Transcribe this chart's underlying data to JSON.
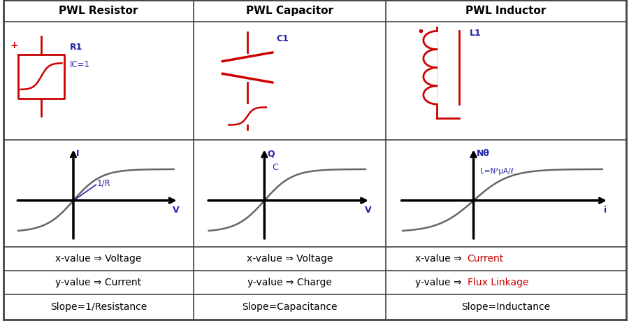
{
  "title_row": [
    "PWL Resistor",
    "PWL Capacitor",
    "PWL Inductor"
  ],
  "text_rows": [
    [
      "x-value ⇒ Voltage",
      "x-value ⇒ Voltage",
      "x-value ⇒ Current"
    ],
    [
      "y-value ⇒ Current",
      "y-value ⇒ Charge",
      "y-value ⇒ Flux Linkage"
    ],
    [
      "Slope=1/Resistance",
      "Slope=Capacitance",
      "Slope=Inductance"
    ]
  ],
  "text_right_red": [
    [
      false,
      false,
      true
    ],
    [
      false,
      false,
      true
    ],
    [
      false,
      false,
      false
    ]
  ],
  "graph_labels": [
    {
      "ylabel": "I",
      "xlabel": "V",
      "slope_label": "1/R"
    },
    {
      "ylabel": "Q",
      "xlabel": "V",
      "slope_label": "C"
    },
    {
      "ylabel": "Nθ",
      "xlabel": "i",
      "slope_label": "L=N²μA/ℓ"
    }
  ],
  "background_color": "#ffffff",
  "header_bg": "#d8d8d8",
  "red_color": "#cc0000",
  "blue_color": "#2222aa",
  "table_line_color": "#444444",
  "rows": [
    1.0,
    0.932,
    0.565,
    0.23,
    0.157,
    0.082,
    0.005
  ],
  "cols": [
    0.005,
    0.308,
    0.613,
    0.995
  ]
}
